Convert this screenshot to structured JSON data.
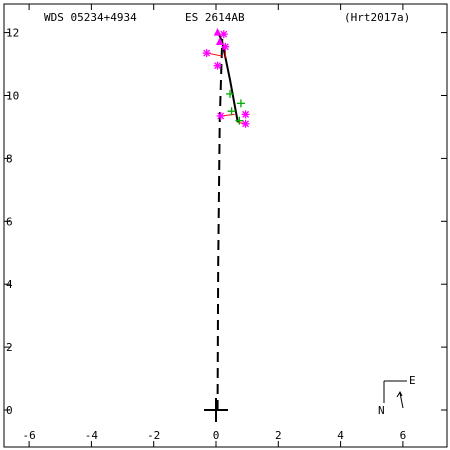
{
  "header": {
    "wds_label": "WDS 05234+4934",
    "discoverer_label": "ES 2614AB",
    "reference_label": "(Hrt2017a)"
  },
  "compass": {
    "north_label": "N",
    "east_label": "E"
  },
  "chart_data": {
    "type": "scatter",
    "title": "",
    "xlabel": "",
    "ylabel": "",
    "xlim": [
      -6.8,
      7.5
    ],
    "ylim": [
      -1.2,
      12.4
    ],
    "x_ticks": [
      -6,
      -4,
      -2,
      0,
      2,
      4,
      6
    ],
    "y_ticks": [
      0,
      2,
      4,
      6,
      8,
      10,
      12
    ],
    "x_tick_labels": [
      "-6",
      "-4",
      "-2",
      "0",
      "2",
      "4",
      "6"
    ],
    "y_tick_labels": [
      "0",
      "2",
      "4",
      "6",
      "8",
      "10",
      "12"
    ],
    "primary_star": [
      0.0,
      0.0
    ],
    "series": [
      {
        "marker": "asterisk",
        "color": "#ff00ff",
        "points": [
          [
            -0.3,
            11.35
          ],
          [
            0.25,
            11.95
          ],
          [
            0.3,
            11.55
          ],
          [
            0.05,
            10.95
          ],
          [
            0.15,
            9.35
          ],
          [
            0.95,
            9.4
          ],
          [
            0.95,
            9.1
          ]
        ]
      },
      {
        "marker": "plus",
        "color": "#00aa00",
        "points": [
          [
            0.45,
            10.05
          ],
          [
            0.8,
            9.75
          ],
          [
            0.5,
            9.5
          ],
          [
            0.75,
            9.2
          ]
        ]
      },
      {
        "marker": "triangle",
        "color": "#ff00ff",
        "points": [
          [
            0.05,
            12.0
          ],
          [
            0.12,
            11.7
          ]
        ]
      }
    ],
    "orbit_arc": [
      [
        0.05,
        12.05
      ],
      [
        0.2,
        11.7
      ],
      [
        0.45,
        10.5
      ],
      [
        0.7,
        9.15
      ]
    ],
    "node_line": [
      [
        0.05,
        0.0
      ],
      [
        0.07,
        4.6
      ],
      [
        0.12,
        9.2
      ],
      [
        0.2,
        11.8
      ]
    ],
    "residuals": [
      [
        [
          0.25,
          11.95
        ],
        [
          0.25,
          11.9
        ]
      ],
      [
        [
          -0.3,
          11.35
        ],
        [
          0.22,
          11.25
        ]
      ],
      [
        [
          0.3,
          11.55
        ],
        [
          0.3,
          11.2
        ]
      ],
      [
        [
          0.15,
          9.35
        ],
        [
          0.6,
          9.4
        ]
      ],
      [
        [
          0.95,
          9.1
        ],
        [
          0.7,
          9.15
        ]
      ]
    ]
  }
}
